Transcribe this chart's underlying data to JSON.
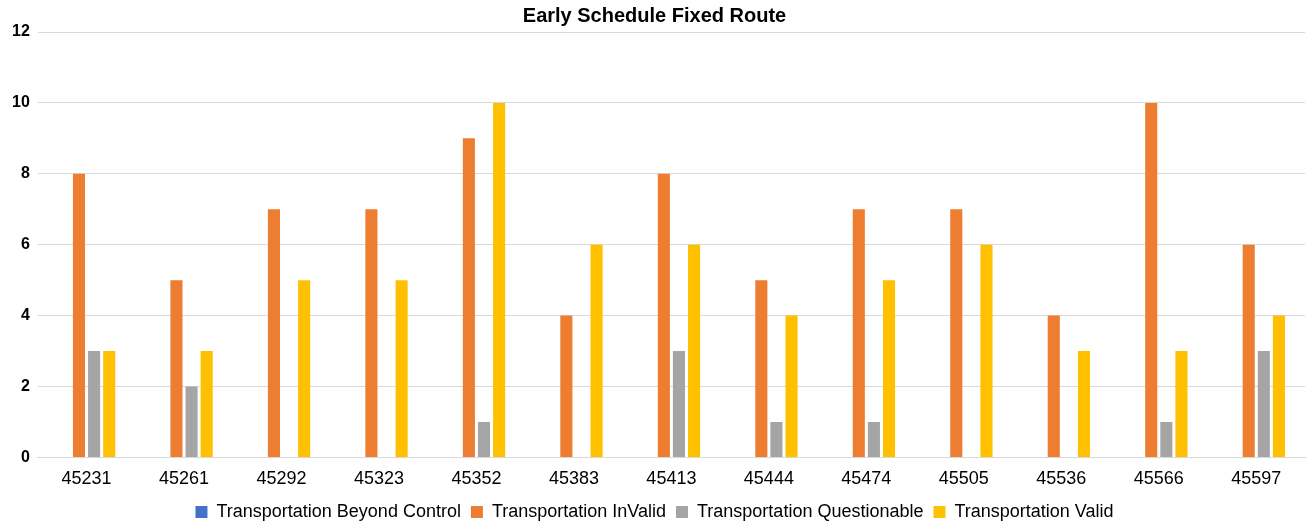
{
  "chart_data": {
    "type": "bar",
    "title": "Early Schedule Fixed Route",
    "categories": [
      "45231",
      "45261",
      "45292",
      "45323",
      "45352",
      "45383",
      "45413",
      "45444",
      "45474",
      "45505",
      "45536",
      "45566",
      "45597"
    ],
    "series": [
      {
        "name": "Transportation Beyond Control",
        "color": "#4472c4",
        "values": [
          0,
          0,
          0,
          0,
          0,
          0,
          0,
          0,
          0,
          0,
          0,
          0,
          0
        ]
      },
      {
        "name": "Transportation InValid",
        "color": "#ed7d31",
        "values": [
          8,
          5,
          7,
          7,
          9,
          4,
          8,
          5,
          7,
          7,
          4,
          10,
          6
        ]
      },
      {
        "name": "Transportation Questionable",
        "color": "#a5a5a5",
        "values": [
          3,
          2,
          0,
          0,
          1,
          0,
          3,
          1,
          1,
          0,
          0,
          1,
          3
        ]
      },
      {
        "name": "Transportation Valid",
        "color": "#ffc000",
        "values": [
          3,
          3,
          5,
          5,
          10,
          6,
          6,
          4,
          5,
          6,
          3,
          3,
          4
        ]
      }
    ],
    "ylim": [
      0,
      12
    ],
    "yticks": [
      0,
      2,
      4,
      6,
      8,
      10,
      12
    ],
    "grid": "y",
    "legend": "bottom"
  }
}
